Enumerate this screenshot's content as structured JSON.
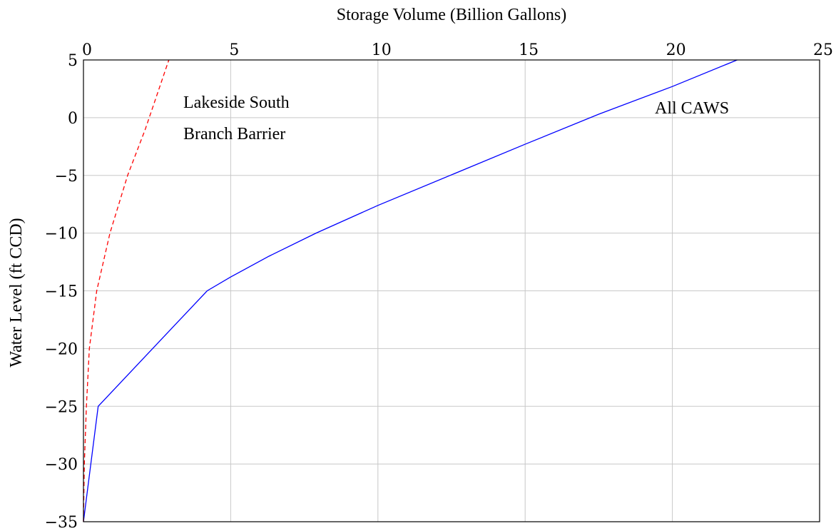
{
  "chart_data": {
    "type": "line",
    "xlabel": "Storage Volume (Billion Gallons)",
    "ylabel": "Water Level (ft CCD)",
    "xlim": [
      0,
      25
    ],
    "ylim": [
      -35,
      5
    ],
    "x_axis_position": "top",
    "grid": true,
    "x_ticks": [
      0,
      5,
      10,
      15,
      20,
      25
    ],
    "y_ticks": [
      5,
      0,
      -5,
      -10,
      -15,
      -20,
      -25,
      -30,
      -35
    ],
    "series": [
      {
        "color": "#0000ff",
        "style": "solid",
        "points": [
          [
            0,
            -35
          ],
          [
            0.5,
            -25
          ],
          [
            4.2,
            -15
          ],
          [
            5.0,
            -13.8
          ],
          [
            6.3,
            -12
          ],
          [
            7.9,
            -10
          ],
          [
            10,
            -7.6
          ],
          [
            15,
            -2.3
          ],
          [
            17.5,
            0.3
          ],
          [
            20,
            2.7
          ],
          [
            22.2,
            5
          ]
        ]
      },
      {
        "color": "#ff0000",
        "style": "dashed",
        "points": [
          [
            0,
            -35
          ],
          [
            0.03,
            -30
          ],
          [
            0.1,
            -25
          ],
          [
            0.2,
            -20
          ],
          [
            0.45,
            -15
          ],
          [
            0.9,
            -10
          ],
          [
            1.5,
            -5
          ],
          [
            2.1,
            -1
          ],
          [
            2.9,
            5
          ]
        ]
      }
    ],
    "annotations": [
      {
        "id": "lakeside",
        "lines": [
          "Lakeside South",
          "Branch Barrier"
        ]
      },
      {
        "id": "caws",
        "lines": [
          "All CAWS"
        ]
      }
    ]
  }
}
